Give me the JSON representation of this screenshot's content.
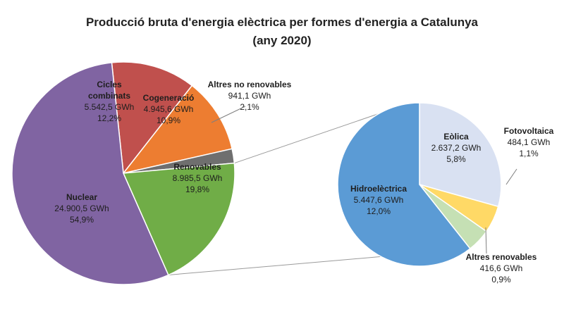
{
  "chart_data": [
    {
      "type": "pie",
      "title": "Producció bruta d'energia elèctrica per formes d'energia a Catalunya",
      "subtitle": "(any 2020)",
      "unit": "GWh",
      "slices": [
        {
          "label": "Cicles combinats",
          "value": 5542.5,
          "value_text": "5.542,5 GWh",
          "percent_text": "12,2%",
          "color": "#C0504D"
        },
        {
          "label": "Cogeneració",
          "value": 4945.6,
          "value_text": "4.945,6 GWh",
          "percent_text": "10,9%",
          "color": "#ED7D31"
        },
        {
          "label": "Altres no renovables",
          "value": 941.1,
          "value_text": "941,1 GWh",
          "percent_text": "2,1%",
          "color": "#6F6F6F"
        },
        {
          "label": "Renovables",
          "value": 8985.5,
          "value_text": "8.985,5 GWh",
          "percent_text": "19,8%",
          "color": "#70AD47"
        },
        {
          "label": "Nuclear",
          "value": 24900.5,
          "value_text": "24.900,5 GWh",
          "percent_text": "54,9%",
          "color": "#8064A2"
        }
      ]
    },
    {
      "type": "pie",
      "title": "",
      "breakdown_of": "Renovables",
      "unit": "GWh",
      "slices": [
        {
          "label": "Eòlica",
          "value": 2637.2,
          "value_text": "2.637,2 GWh",
          "percent_text": "5,8%",
          "color": "#D9E1F2"
        },
        {
          "label": "Fotovoltaica",
          "value": 484.1,
          "value_text": "484,1 GWh",
          "percent_text": "1,1%",
          "color": "#FFD966"
        },
        {
          "label": "Altres renovables",
          "value": 416.6,
          "value_text": "416,6 GWh",
          "percent_text": "0,9%",
          "color": "#C5E0B4"
        },
        {
          "label": "Hidroelèctrica",
          "value": 5447.6,
          "value_text": "5.447,6 GWh",
          "percent_text": "12,0%",
          "color": "#5B9BD5"
        }
      ]
    }
  ]
}
